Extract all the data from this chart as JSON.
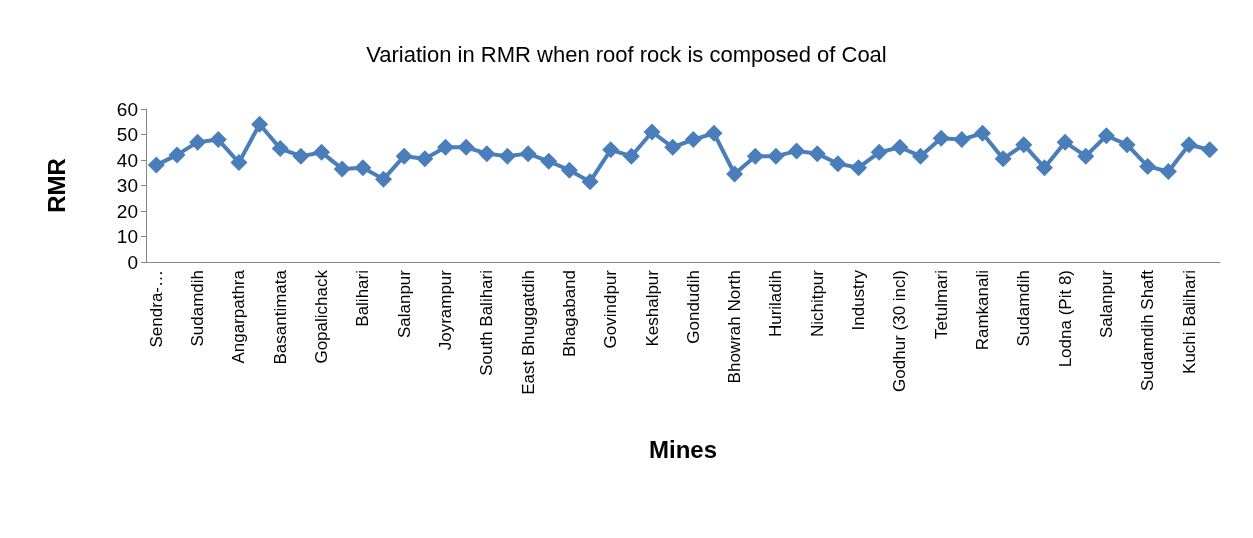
{
  "chart_data": {
    "type": "line",
    "title": "Variation in RMR when roof rock is composed of Coal",
    "xlabel": "Mines",
    "ylabel": "RMR",
    "categories": [
      "Sendra-…",
      null,
      "Sudamdih",
      null,
      "Angarpathra",
      null,
      "Basantimata",
      null,
      "Gopalichack",
      null,
      "Balihari",
      null,
      "Salanpur",
      null,
      "Joyrampur",
      null,
      "South Balihari",
      null,
      "East Bhuggatdih",
      null,
      "Bhagaband",
      null,
      "Govindpur",
      null,
      "Keshalpur",
      null,
      "Gondudih",
      null,
      "Bhowrah North",
      null,
      "Huriladih",
      null,
      "Nichitpur",
      null,
      "Industry",
      null,
      "Godhur (30 incl)",
      null,
      "Tetulmari",
      null,
      "Ramkanali",
      null,
      "Sudamdih",
      null,
      "Lodna (Pit 8)",
      null,
      "Salanpur",
      null,
      "Sudamdih Shaft",
      null,
      "Kuchi Balihari",
      null
    ],
    "series": [
      {
        "color": "#4a7ebb",
        "values": [
          38,
          42,
          47,
          48,
          39,
          54,
          44.5,
          41.5,
          43,
          36.5,
          37,
          32.5,
          41.5,
          40.5,
          45,
          45,
          42.5,
          41.5,
          42.5,
          39.5,
          36,
          31.5,
          44,
          41.5,
          51,
          45,
          48,
          50.5,
          34.5,
          41.5,
          41.5,
          43.5,
          42.5,
          38.5,
          37,
          43,
          45,
          41.5,
          48.5,
          48,
          50.5,
          40.5,
          46,
          37,
          47,
          41.5,
          49.5,
          46,
          37.5,
          35.5,
          46,
          44
        ]
      }
    ],
    "ylim": [
      0,
      60
    ],
    "yticks": [
      0,
      10,
      20,
      30,
      40,
      50,
      60
    ],
    "grid": false,
    "marker": "diamond",
    "line_style": "solid"
  }
}
